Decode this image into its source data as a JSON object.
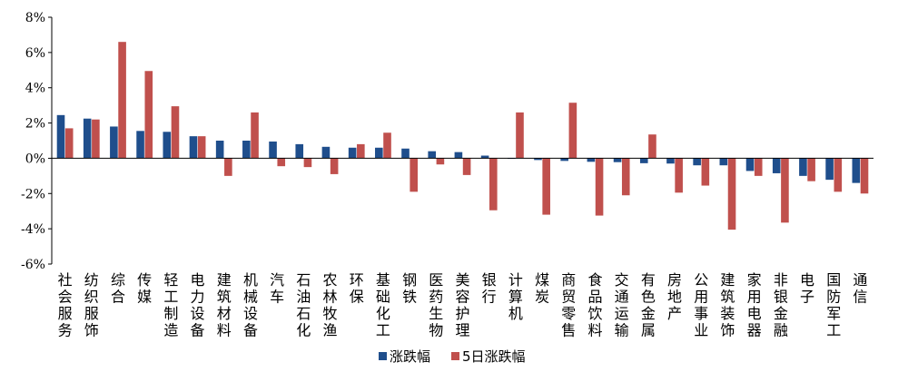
{
  "chart_data": {
    "type": "bar",
    "title": "",
    "xlabel": "",
    "ylabel": "",
    "ylim": [
      -6,
      8
    ],
    "yticks": [
      -6,
      -4,
      -2,
      0,
      2,
      4,
      6,
      8
    ],
    "ytick_labels": [
      "-6%",
      "-4%",
      "-2%",
      "0%",
      "2%",
      "4%",
      "6%",
      "8%"
    ],
    "grid": false,
    "legend_position": "bottom",
    "categories": [
      "社会服务",
      "纺织服饰",
      "综合",
      "传媒",
      "轻工制造",
      "电力设备",
      "建筑材料",
      "机械设备",
      "汽车",
      "石油石化",
      "农林牧渔",
      "环保",
      "基础化工",
      "钢铁",
      "医药生物",
      "美容护理",
      "银行",
      "计算机",
      "煤炭",
      "商贸零售",
      "食品饮料",
      "交通运输",
      "有色金属",
      "房地产",
      "公用事业",
      "建筑装饰",
      "家用电器",
      "非银金融",
      "电子",
      "国防军工",
      "通信"
    ],
    "series": [
      {
        "name": "涨跌幅",
        "color": "#1f4e8c",
        "values": [
          2.45,
          2.25,
          1.8,
          1.55,
          1.5,
          1.25,
          1.0,
          1.0,
          0.95,
          0.8,
          0.65,
          0.6,
          0.6,
          0.55,
          0.4,
          0.35,
          0.15,
          -0.02,
          -0.1,
          -0.15,
          -0.2,
          -0.22,
          -0.28,
          -0.3,
          -0.4,
          -0.4,
          -0.72,
          -0.85,
          -1.0,
          -1.22,
          -1.4
        ]
      },
      {
        "name": "5日涨跌幅",
        "color": "#c0504d",
        "values": [
          1.7,
          2.2,
          6.6,
          4.95,
          2.95,
          1.25,
          -1.0,
          2.6,
          -0.45,
          -0.5,
          -0.9,
          0.8,
          1.45,
          -1.9,
          -0.35,
          -0.95,
          -2.95,
          2.6,
          -3.2,
          3.15,
          -3.25,
          -2.1,
          1.35,
          -1.95,
          -1.55,
          -4.05,
          -1.0,
          -3.65,
          -1.3,
          -1.9,
          -2.0
        ]
      }
    ]
  }
}
